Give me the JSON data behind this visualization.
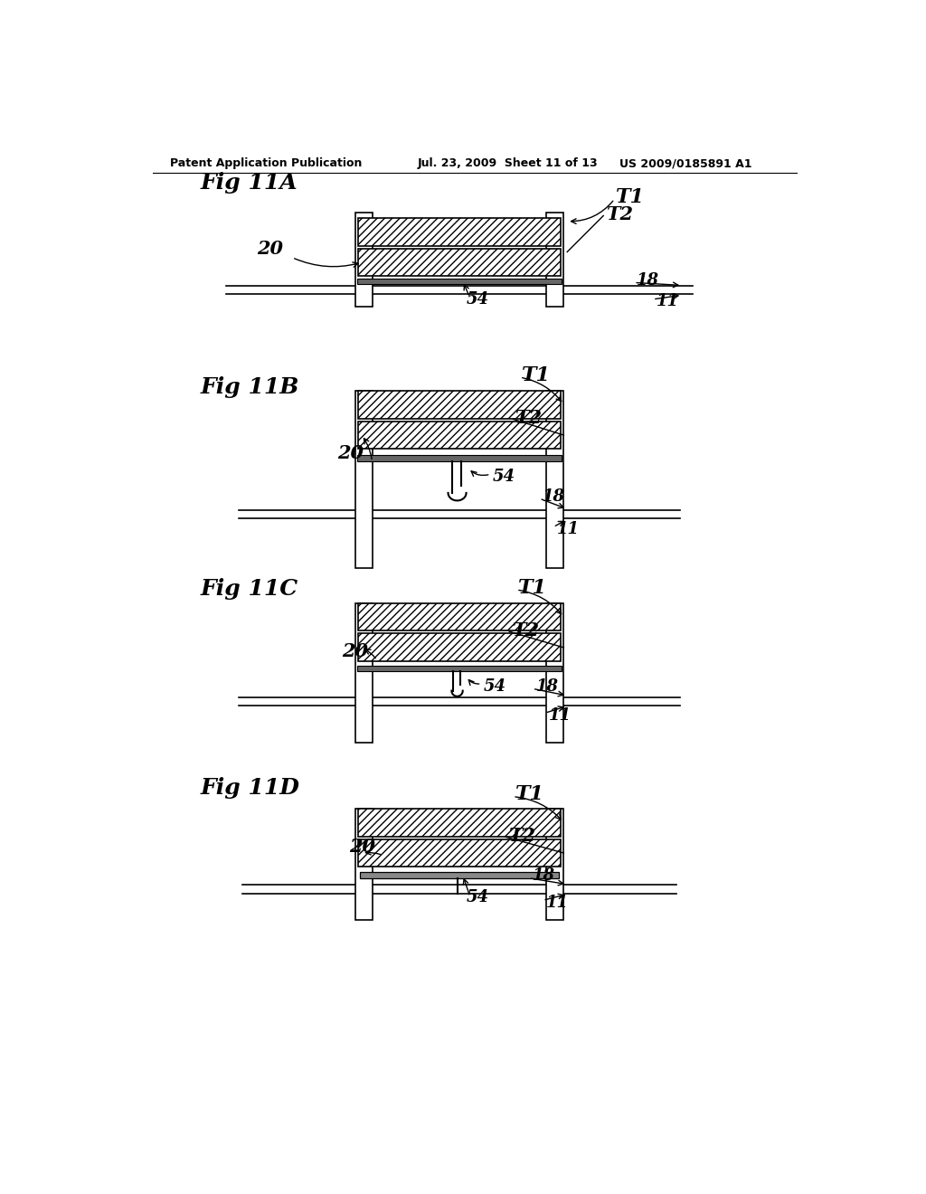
{
  "header_left": "Patent Application Publication",
  "header_mid": "Jul. 23, 2009  Sheet 11 of 13",
  "header_right": "US 2009/0185891 A1",
  "fig_labels": [
    "Fig 11A",
    "Fig 11B",
    "Fig 11C",
    "Fig 11D"
  ],
  "bg_color": "#ffffff",
  "line_color": "#000000"
}
